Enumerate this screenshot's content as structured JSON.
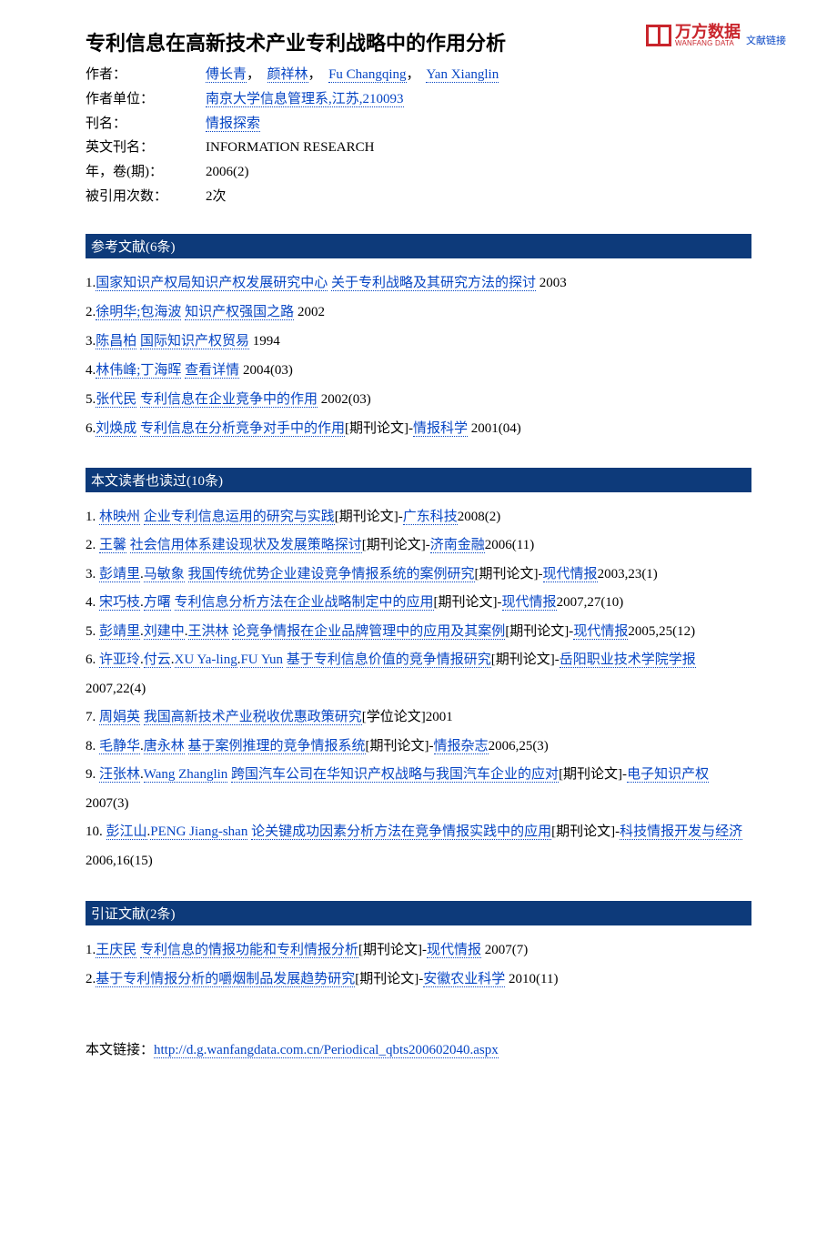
{
  "logo": {
    "cn": "万方数据",
    "en": "WANFANG DATA",
    "doclink": "文献链接"
  },
  "title": "专利信息在高新技术产业专利战略中的作用分析",
  "meta": {
    "author_label": "作者：",
    "authors": [
      "傅长青",
      "颜祥林",
      "Fu Changqing",
      "Yan Xianglin"
    ],
    "affiliation_label": "作者单位：",
    "affiliation": "南京大学信息管理系,江苏,210093",
    "journal_label": "刊名：",
    "journal": "情报探索",
    "journal_en_label": "英文刊名：",
    "journal_en": "INFORMATION RESEARCH",
    "year_label": "年，卷(期)：",
    "year": "2006(2)",
    "cited_label": "被引用次数：",
    "cited": "2次"
  },
  "sections": {
    "refs": "参考文献(6条)",
    "alsoread": "本文读者也读过(10条)",
    "citing": "引证文献(2条)"
  },
  "refs": [
    {
      "n": "1.",
      "authors": "国家知识产权局知识产权发展研究中心",
      "title": "关于专利战略及其研究方法的探讨",
      "tail": " 2003"
    },
    {
      "n": "2.",
      "authors": "徐明华;包海波",
      "title": "知识产权强国之路",
      "tail": " 2002"
    },
    {
      "n": "3.",
      "authors": "陈昌柏",
      "title": "国际知识产权贸易",
      "tail": " 1994"
    },
    {
      "n": "4.",
      "authors": "林伟峰;丁海晖",
      "title": "查看详情",
      "tail": " 2004(03)"
    },
    {
      "n": "5.",
      "authors": "张代民",
      "title": "专利信息在企业竞争中的作用",
      "tail": " 2002(03)"
    },
    {
      "n": "6.",
      "authors": "刘焕成",
      "title": "专利信息在分析竞争对手中的作用",
      "bracket": "[期刊论文]-",
      "src": "情报科学",
      "tail": " 2001(04)"
    }
  ],
  "alsoread": [
    {
      "n": "1. ",
      "authors": [
        "林映州"
      ],
      "title": "企业专利信息运用的研究与实践",
      "bracket": "[期刊论文]-",
      "src": "广东科技",
      "tail": "2008(2)"
    },
    {
      "n": "2. ",
      "authors": [
        "王馨"
      ],
      "title": "社会信用体系建设现状及发展策略探讨",
      "bracket": "[期刊论文]-",
      "src": "济南金融",
      "tail": "2006(11)"
    },
    {
      "n": "3. ",
      "authors": [
        "彭靖里",
        "马敏象"
      ],
      "title": "我国传统优势企业建设竞争情报系统的案例研究",
      "bracket": "[期刊论文]-",
      "src": "现代情报",
      "tail": "2003,23(1)"
    },
    {
      "n": "4. ",
      "authors": [
        "宋巧枝",
        "方曙"
      ],
      "title": "专利信息分析方法在企业战略制定中的应用",
      "bracket": "[期刊论文]-",
      "src": "现代情报",
      "tail": "2007,27(10)"
    },
    {
      "n": "5. ",
      "authors": [
        "彭靖里",
        "刘建中",
        "王洪林"
      ],
      "title": "论竞争情报在企业品牌管理中的应用及其案例",
      "bracket": "[期刊论文]-",
      "src": "现代情报",
      "tail": "2005,25(12)"
    },
    {
      "n": "6. ",
      "authors": [
        "许亚玲",
        "付云",
        "XU Ya-ling",
        "FU Yun"
      ],
      "title": "基于专利信息价值的竞争情报研究",
      "bracket": "[期刊论文]-",
      "src": "岳阳职业技术学院学报",
      "tail": "2007,22(4)"
    },
    {
      "n": "7. ",
      "authors": [
        "周娟英"
      ],
      "title": "我国高新技术产业税收优惠政策研究",
      "bracket": "[学位论文]",
      "src": "",
      "tail": "2001"
    },
    {
      "n": "8. ",
      "authors": [
        "毛静华",
        "唐永林"
      ],
      "title": "基于案例推理的竞争情报系统",
      "bracket": "[期刊论文]-",
      "src": "情报杂志",
      "tail": "2006,25(3)"
    },
    {
      "n": "9. ",
      "authors": [
        "汪张林",
        "Wang Zhanglin"
      ],
      "title": "跨国汽车公司在华知识产权战略与我国汽车企业的应对",
      "bracket": "[期刊论文]-",
      "src": "电子知识产权",
      "tail": "2007(3)"
    },
    {
      "n": "10. ",
      "authors": [
        "彭江山",
        "PENG Jiang-shan"
      ],
      "title": "论关键成功因素分析方法在竞争情报实践中的应用",
      "bracket": "[期刊论文]-",
      "src": "科技情报开发与经济",
      "tail": "2006,16(15)"
    }
  ],
  "citing": [
    {
      "n": "1.",
      "authors": "王庆民",
      "title": "专利信息的情报功能和专利情报分析",
      "bracket": "[期刊论文]-",
      "src": "现代情报",
      "tail": " 2007(7)"
    },
    {
      "n": "2.",
      "authors": "",
      "title": "基于专利情报分析的嚼烟制品发展趋势研究",
      "bracket": "[期刊论文]-",
      "src": "安徽农业科学",
      "tail": " 2010(11)"
    }
  ],
  "footer": {
    "label": "本文链接：",
    "url": "http://d.g.wanfangdata.com.cn/Periodical_qbts200602040.aspx"
  }
}
